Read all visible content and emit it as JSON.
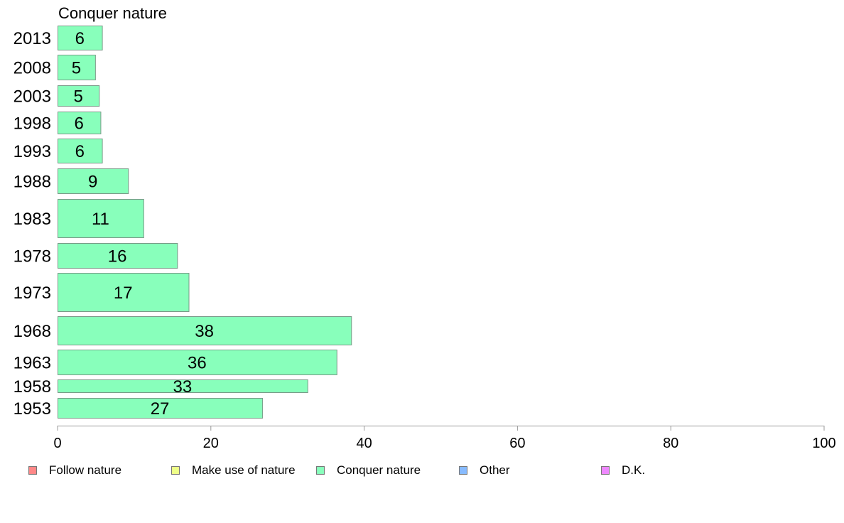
{
  "chart_data": {
    "type": "bar",
    "orientation": "horizontal",
    "title": "Conquer nature",
    "categories": [
      "2013",
      "2008",
      "2003",
      "1998",
      "1993",
      "1988",
      "1983",
      "1978",
      "1973",
      "1968",
      "1963",
      "1958",
      "1953"
    ],
    "values": [
      6,
      5,
      5,
      6,
      6,
      9,
      11,
      16,
      17,
      38,
      36,
      33,
      27
    ],
    "bar_lengths": [
      5.8,
      4.9,
      5.4,
      5.6,
      5.8,
      9.2,
      11.2,
      15.6,
      17.1,
      38.3,
      36.4,
      32.6,
      26.7
    ],
    "xlim": [
      0,
      100
    ],
    "xticks": [
      "0",
      "20",
      "40",
      "60",
      "80",
      "100"
    ],
    "bar_color": "#88FFBB",
    "legend_position": "bottom",
    "legend": [
      {
        "label": "Follow nature",
        "color": "#FF8888"
      },
      {
        "label": "Make use of nature",
        "color": "#EEFF88"
      },
      {
        "label": "Conquer nature",
        "color": "#88FFBB"
      },
      {
        "label": "Other",
        "color": "#88BBFF"
      },
      {
        "label": "D.K.",
        "color": "#EE88FF"
      }
    ]
  }
}
